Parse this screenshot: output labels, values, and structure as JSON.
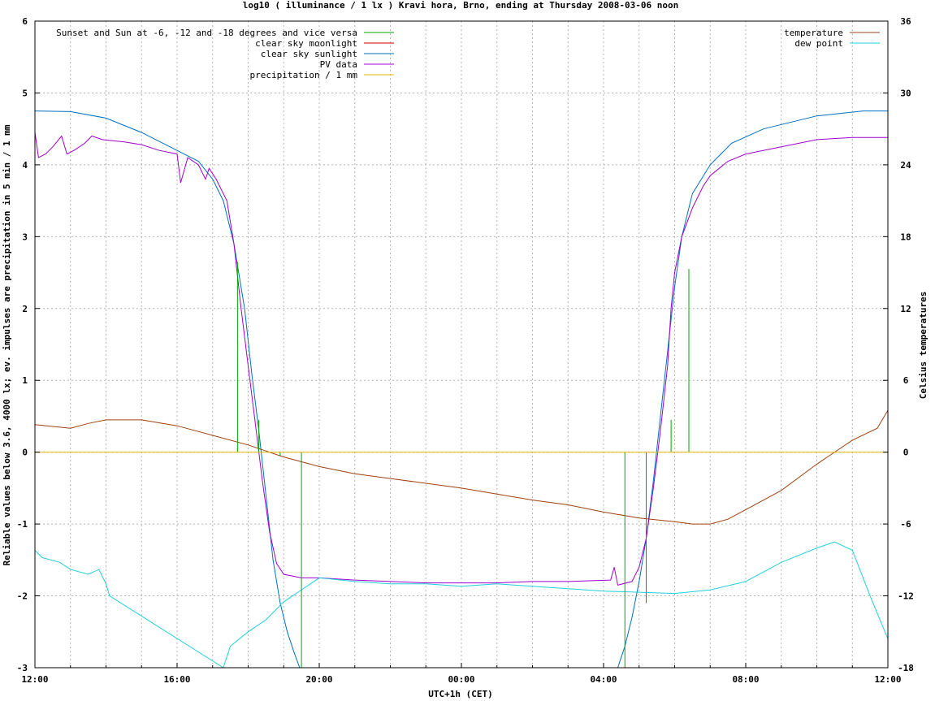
{
  "chart_data": {
    "type": "line",
    "title": "log10 ( illuminance / 1 lx ) Kravi hora, Brno, ending at Thursday 2008-03-06 noon",
    "xlabel": "UTC+1h (CET)",
    "ylabel": "Reliable values below 3.6, 4000 lx; ev. impulses are precipitation in 5 min / 1 mm",
    "y2label": "Celsius temperatures",
    "x_ticks": [
      "12:00",
      "16:00",
      "20:00",
      "00:00",
      "04:00",
      "08:00",
      "12:00"
    ],
    "x_range_hours": [
      0,
      24
    ],
    "ylim": [
      -3,
      6
    ],
    "y_ticks": [
      "-3",
      "-2",
      "-1",
      "0",
      "1",
      "2",
      "3",
      "4",
      "5",
      "6"
    ],
    "y2lim": [
      -18,
      36
    ],
    "y2_ticks": [
      "-18",
      "-12",
      "-6",
      "0",
      "6",
      "12",
      "18",
      "24",
      "30",
      "36"
    ],
    "grid": true,
    "legend_left": [
      {
        "name": "Sunset and Sun at -6, -12 and -18 degrees and vice versa",
        "color": "#00aa00"
      },
      {
        "name": "clear sky moonlight",
        "color": "#cc0000"
      },
      {
        "name": "clear sky sunlight",
        "color": "#0070c0"
      },
      {
        "name": "PV data",
        "color": "#a000d0"
      },
      {
        "name": "precipitation / 1 mm",
        "color": "#e6b800"
      }
    ],
    "legend_right": [
      {
        "name": "temperature",
        "color": "#a04010"
      },
      {
        "name": "dew point",
        "color": "#20d0d8"
      }
    ],
    "series": [
      {
        "name": "clear sky sunlight",
        "axis": "y",
        "color": "#0070c0",
        "points": [
          [
            0,
            4.75
          ],
          [
            1,
            4.74
          ],
          [
            2,
            4.65
          ],
          [
            3,
            4.45
          ],
          [
            4,
            4.2
          ],
          [
            4.6,
            4.05
          ],
          [
            5,
            3.8
          ],
          [
            5.3,
            3.5
          ],
          [
            5.6,
            2.9
          ],
          [
            5.9,
            2.0
          ],
          [
            6.1,
            1.1
          ],
          [
            6.3,
            0.3
          ],
          [
            6.5,
            -0.6
          ],
          [
            6.7,
            -1.5
          ],
          [
            6.9,
            -2.1
          ],
          [
            7.1,
            -2.5
          ],
          [
            7.3,
            -2.8
          ],
          [
            7.45,
            -3.0
          ]
        ]
      },
      {
        "name": "clear sky sunlight (morning)",
        "axis": "y",
        "color": "#0070c0",
        "points": [
          [
            16.4,
            -3.0
          ],
          [
            16.6,
            -2.7
          ],
          [
            16.8,
            -2.3
          ],
          [
            17.0,
            -1.8
          ],
          [
            17.2,
            -1.2
          ],
          [
            17.4,
            -0.4
          ],
          [
            17.6,
            0.5
          ],
          [
            17.8,
            1.4
          ],
          [
            18.0,
            2.3
          ],
          [
            18.2,
            3.0
          ],
          [
            18.5,
            3.6
          ],
          [
            19.0,
            4.0
          ],
          [
            19.6,
            4.3
          ],
          [
            20.5,
            4.5
          ],
          [
            22,
            4.68
          ],
          [
            23.3,
            4.75
          ],
          [
            24,
            4.75
          ]
        ]
      },
      {
        "name": "PV data",
        "axis": "y",
        "color": "#a000d0",
        "points": [
          [
            0,
            4.45
          ],
          [
            0.1,
            4.1
          ],
          [
            0.3,
            4.15
          ],
          [
            0.5,
            4.25
          ],
          [
            0.75,
            4.4
          ],
          [
            0.9,
            4.15
          ],
          [
            1.1,
            4.2
          ],
          [
            1.4,
            4.3
          ],
          [
            1.6,
            4.4
          ],
          [
            1.9,
            4.35
          ],
          [
            2.5,
            4.32
          ],
          [
            3,
            4.28
          ],
          [
            3.5,
            4.2
          ],
          [
            4,
            4.15
          ],
          [
            4.1,
            3.75
          ],
          [
            4.3,
            4.1
          ],
          [
            4.6,
            4.0
          ],
          [
            4.8,
            3.8
          ],
          [
            4.9,
            3.95
          ],
          [
            5.1,
            3.8
          ],
          [
            5.4,
            3.5
          ],
          [
            5.6,
            2.9
          ],
          [
            5.8,
            2.0
          ],
          [
            6.0,
            1.2
          ],
          [
            6.2,
            0.4
          ],
          [
            6.4,
            -0.4
          ],
          [
            6.6,
            -1.1
          ],
          [
            6.8,
            -1.55
          ],
          [
            7.0,
            -1.7
          ],
          [
            7.5,
            -1.75
          ],
          [
            8,
            -1.75
          ],
          [
            9,
            -1.78
          ],
          [
            10,
            -1.8
          ],
          [
            11,
            -1.82
          ],
          [
            12,
            -1.82
          ],
          [
            13,
            -1.82
          ],
          [
            14,
            -1.8
          ],
          [
            15,
            -1.8
          ],
          [
            16.2,
            -1.78
          ],
          [
            16.3,
            -1.6
          ],
          [
            16.4,
            -1.85
          ],
          [
            16.8,
            -1.8
          ],
          [
            17.0,
            -1.6
          ],
          [
            17.2,
            -1.2
          ],
          [
            17.4,
            -0.5
          ],
          [
            17.6,
            0.3
          ],
          [
            17.8,
            1.2
          ],
          [
            17.9,
            2.0
          ],
          [
            18.0,
            2.5
          ],
          [
            18.2,
            3.0
          ],
          [
            18.5,
            3.4
          ],
          [
            18.8,
            3.7
          ],
          [
            19.0,
            3.85
          ],
          [
            19.5,
            4.05
          ],
          [
            20,
            4.15
          ],
          [
            21,
            4.25
          ],
          [
            22,
            4.35
          ],
          [
            23,
            4.38
          ],
          [
            24,
            4.38
          ]
        ]
      },
      {
        "name": "temperature",
        "axis": "y2",
        "color": "#a04010",
        "points": [
          [
            0,
            2.3
          ],
          [
            1,
            2.0
          ],
          [
            1.5,
            2.4
          ],
          [
            2,
            2.7
          ],
          [
            3,
            2.7
          ],
          [
            4,
            2.2
          ],
          [
            5,
            1.4
          ],
          [
            6,
            0.6
          ],
          [
            7,
            -0.4
          ],
          [
            7.5,
            -0.8
          ],
          [
            8,
            -1.2
          ],
          [
            9,
            -1.8
          ],
          [
            10,
            -2.2
          ],
          [
            11,
            -2.6
          ],
          [
            12,
            -3.0
          ],
          [
            13,
            -3.5
          ],
          [
            14,
            -4.0
          ],
          [
            15,
            -4.4
          ],
          [
            16,
            -5.0
          ],
          [
            17,
            -5.5
          ],
          [
            18,
            -5.8
          ],
          [
            18.5,
            -6.0
          ],
          [
            19,
            -6.0
          ],
          [
            19.5,
            -5.6
          ],
          [
            20,
            -4.8
          ],
          [
            21,
            -3.2
          ],
          [
            22,
            -1.0
          ],
          [
            23,
            1.0
          ],
          [
            23.7,
            2.0
          ],
          [
            24,
            3.5
          ]
        ]
      },
      {
        "name": "dew point",
        "axis": "y2",
        "color": "#20d0d8",
        "points": [
          [
            0,
            -8.2
          ],
          [
            0.2,
            -8.8
          ],
          [
            0.7,
            -9.2
          ],
          [
            1,
            -9.8
          ],
          [
            1.5,
            -10.2
          ],
          [
            1.8,
            -9.8
          ],
          [
            2.0,
            -11.0
          ],
          [
            2.1,
            -12.0
          ],
          [
            5.3,
            -18.0
          ],
          [
            5.5,
            -16.2
          ],
          [
            6,
            -15.0
          ],
          [
            6.5,
            -14.0
          ],
          [
            7,
            -12.5
          ],
          [
            8,
            -10.5
          ],
          [
            9,
            -10.8
          ],
          [
            10,
            -11.0
          ],
          [
            11,
            -11.0
          ],
          [
            12,
            -11.2
          ],
          [
            13,
            -11.0
          ],
          [
            14,
            -11.2
          ],
          [
            15,
            -11.4
          ],
          [
            16,
            -11.6
          ],
          [
            17,
            -11.7
          ],
          [
            18,
            -11.8
          ],
          [
            19,
            -11.5
          ],
          [
            20,
            -10.8
          ],
          [
            21,
            -9.2
          ],
          [
            22,
            -8.0
          ],
          [
            22.5,
            -7.5
          ],
          [
            23,
            -8.2
          ],
          [
            23.5,
            -12.0
          ],
          [
            24,
            -15.6
          ]
        ]
      },
      {
        "name": "Sunset and Sun at -6, -12 and -18 degrees and vice versa",
        "axis": "y",
        "color": "#00aa00",
        "type": "impulse",
        "points": [
          [
            5.7,
            2.65
          ],
          [
            6.3,
            0.45
          ],
          [
            6.9,
            -0.05
          ],
          [
            7.5,
            -3.0
          ],
          [
            16.6,
            -3.0
          ],
          [
            17.2,
            -2.1
          ],
          [
            17.9,
            0.45
          ],
          [
            18.4,
            2.55
          ]
        ]
      },
      {
        "name": "precipitation / 1 mm",
        "axis": "y",
        "color": "#e6b800",
        "points": [
          [
            0,
            0
          ],
          [
            24,
            0
          ]
        ]
      }
    ]
  }
}
